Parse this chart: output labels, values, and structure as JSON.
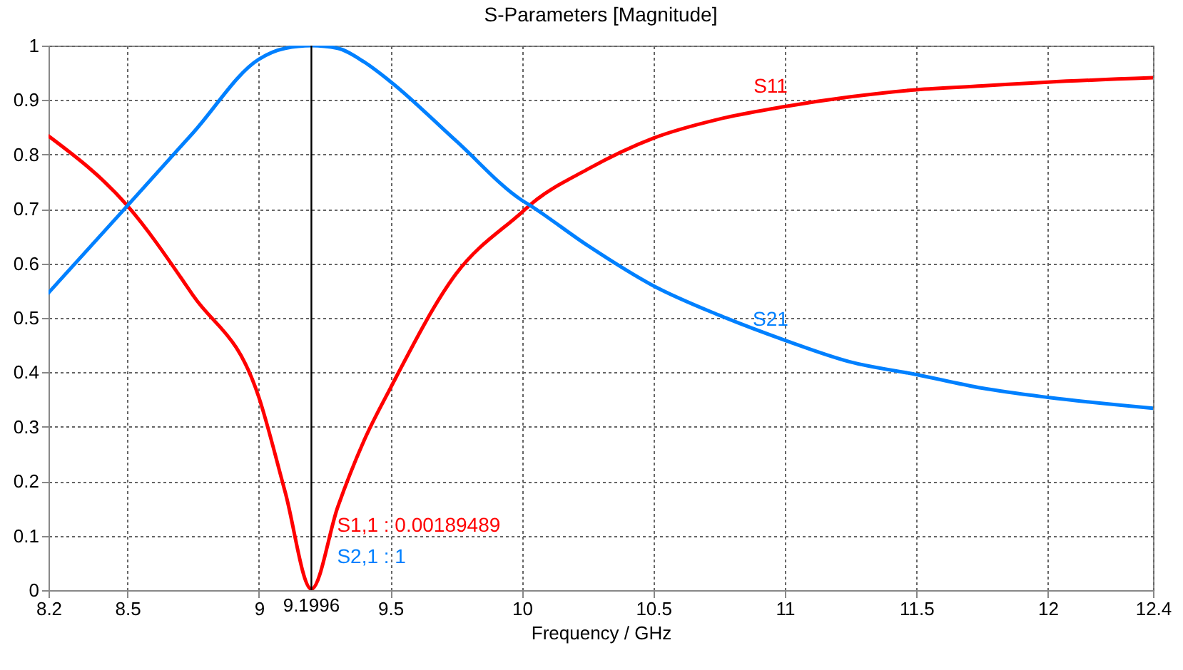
{
  "chart_data": {
    "type": "line",
    "title": "S-Parameters [Magnitude]",
    "xlabel": "Frequency / GHz",
    "x": [
      8.2,
      8.5,
      8.75,
      9.0,
      9.1,
      9.1996,
      9.3,
      9.4,
      9.5,
      9.75,
      10.0,
      10.03,
      10.25,
      10.5,
      10.75,
      11.0,
      11.25,
      11.5,
      11.75,
      12.0,
      12.4
    ],
    "series": [
      {
        "name": "S11",
        "color": "#ff0000",
        "values": [
          0.834,
          0.706,
          0.541,
          0.354,
          0.18,
          0.00189489,
          0.153,
          0.275,
          0.371,
          0.581,
          0.694,
          0.707,
          0.773,
          0.83,
          0.865,
          0.888,
          0.906,
          0.919,
          0.926,
          0.933,
          0.941
        ]
      },
      {
        "name": "S21",
        "color": "#0080ff",
        "values": [
          0.546,
          0.706,
          0.84,
          0.975,
          0.995,
          1.0,
          0.995,
          0.97,
          0.934,
          0.825,
          0.716,
          0.707,
          0.633,
          0.559,
          0.505,
          0.459,
          0.419,
          0.396,
          0.371,
          0.354,
          0.334
        ]
      }
    ],
    "xlim": [
      8.2,
      12.4
    ],
    "xticks": [
      8.2,
      8.5,
      9,
      9.5,
      10,
      10.5,
      11,
      11.5,
      12,
      12.4
    ],
    "ylim": [
      0,
      1
    ],
    "yticks": [
      0,
      0.1,
      0.2,
      0.3,
      0.4,
      0.5,
      0.6,
      0.7,
      0.8,
      0.9,
      1
    ],
    "grid": true,
    "legend": false,
    "line_style": "solid",
    "ref_lines": [
      {
        "axis": "x",
        "value": 9.1996,
        "label": "9.1996",
        "color": "#000000"
      }
    ],
    "annotations": [
      "S1,1 : 0.00189489",
      "S2,1 : 1"
    ]
  }
}
